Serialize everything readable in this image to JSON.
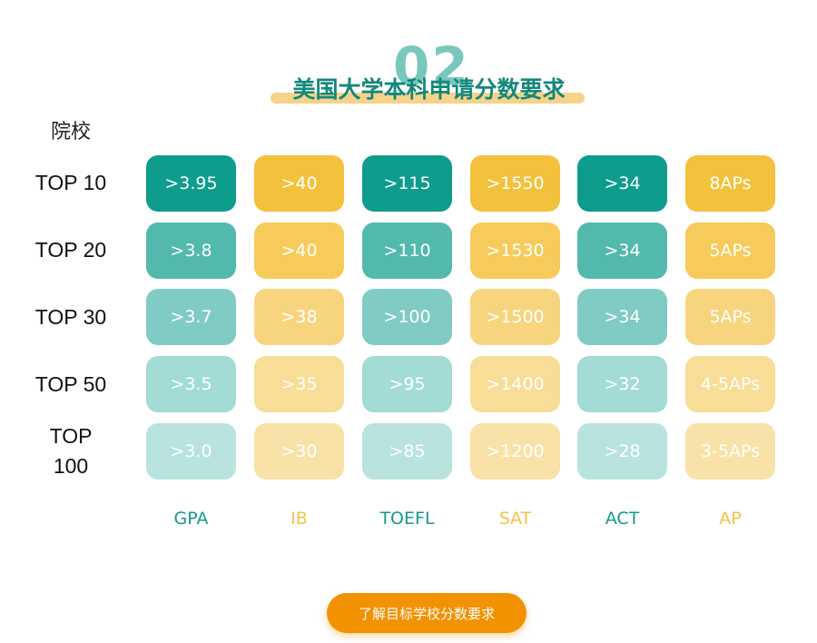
{
  "header": {
    "section_number": "02",
    "title": "美国大学本科申请分数要求"
  },
  "table": {
    "school_header": "院校",
    "rows": [
      {
        "label": "TOP 10",
        "values": [
          ">3.95",
          ">40",
          ">115",
          ">1550",
          ">34",
          "8APs"
        ]
      },
      {
        "label": "TOP 20",
        "values": [
          ">3.8",
          ">40",
          ">110",
          ">1530",
          ">34",
          "5APs"
        ]
      },
      {
        "label": "TOP 30",
        "values": [
          ">3.7",
          ">38",
          ">100",
          ">1500",
          ">34",
          "5APs"
        ]
      },
      {
        "label": "TOP 50",
        "values": [
          ">3.5",
          ">35",
          ">95",
          ">1400",
          ">32",
          "4-5APs"
        ]
      },
      {
        "label": "TOP 100",
        "values": [
          ">3.0",
          ">30",
          ">85",
          ">1200",
          ">28",
          "3-5APs"
        ]
      }
    ],
    "columns": [
      "GPA",
      "IB",
      "TOEFL",
      "SAT",
      "ACT",
      "AP"
    ]
  },
  "colors": {
    "teal_rows": [
      "#0e9c8d",
      "#53b9ad",
      "#80cbc3",
      "#a3dbd5",
      "#b8e3de"
    ],
    "yellow_rows": [
      "#f4c13d",
      "#f6cb5c",
      "#f7d57f",
      "#f8dd97",
      "#f9e2a7"
    ],
    "teal_label": "#14998a",
    "yellow_label": "#f5c347",
    "cta": "#f39200"
  },
  "cta": {
    "label": "了解目标学校分数要求"
  }
}
